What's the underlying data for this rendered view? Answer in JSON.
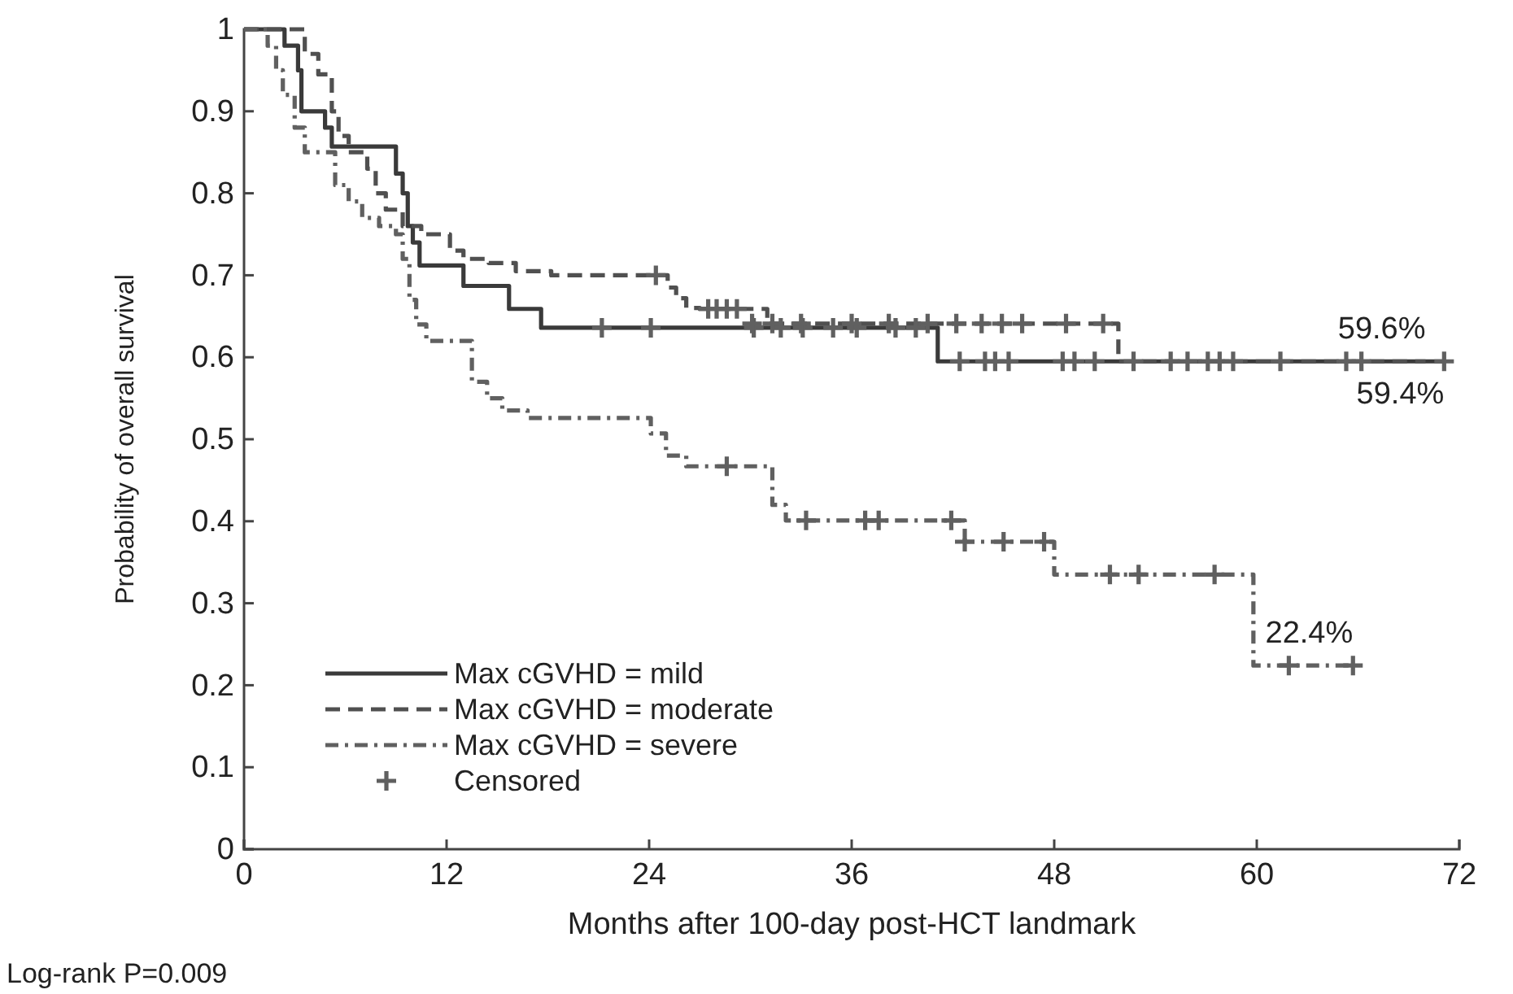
{
  "chart_data": {
    "type": "step",
    "xlabel": "Months after 100-day post-HCT landmark",
    "ylabel": "Probability of overall survival",
    "xlim": [
      0,
      72
    ],
    "xticks": [
      0,
      12,
      24,
      36,
      48,
      60,
      72
    ],
    "ylim": [
      0,
      1
    ],
    "yticks": [
      0,
      0.1,
      0.2,
      0.3,
      0.4,
      0.5,
      0.6,
      0.7,
      0.8,
      0.9,
      1
    ],
    "legend": "bottom left",
    "grid": false,
    "annotations": [
      {
        "text": "59.6%",
        "x": 70,
        "y": 0.595
      },
      {
        "text": "59.4%",
        "x": 71.1,
        "y": 0.595
      },
      {
        "text": "22.4%",
        "x": 65.7,
        "y": 0.224
      },
      "Log-rank P=0.009"
    ],
    "series": [
      {
        "name": "Max cGVHD = mild",
        "line_style": "solid",
        "color": "#3a3a3a",
        "x": [
          0,
          2.4,
          3.2,
          3.4,
          4.8,
          5.2,
          9.0,
          9.4,
          9.7,
          10.0,
          10.4,
          13.0,
          15.7,
          17.6,
          41.1,
          71.1
        ],
        "values": [
          1,
          0.98,
          0.95,
          0.9,
          0.88,
          0.857,
          0.824,
          0.8,
          0.76,
          0.74,
          0.712,
          0.687,
          0.659,
          0.636,
          0.595,
          0.595
        ]
      },
      {
        "name": "Max cGVHD = moderate",
        "line_style": "dashed",
        "color": "#505050",
        "x": [
          0,
          3.6,
          4.4,
          5.2,
          5.6,
          6.2,
          7.3,
          7.8,
          8.4,
          9.4,
          10.5,
          12.2,
          13.0,
          14.5,
          16.1,
          18.2,
          25.1,
          25.6,
          26.2,
          27.0,
          31.0,
          51.8,
          70
        ],
        "values": [
          1,
          0.97,
          0.945,
          0.9,
          0.87,
          0.85,
          0.83,
          0.8,
          0.78,
          0.76,
          0.75,
          0.73,
          0.72,
          0.715,
          0.705,
          0.7,
          0.685,
          0.672,
          0.66,
          0.659,
          0.641,
          0.595,
          0.595
        ]
      },
      {
        "name": "Max cGVHD = severe",
        "line_style": "dashdot",
        "color": "#606060",
        "x": [
          0,
          1.4,
          1.9,
          2.3,
          3.0,
          3.6,
          5.4,
          6.2,
          7.0,
          8.0,
          9.0,
          9.4,
          9.8,
          10.2,
          10.8,
          13.5,
          14.4,
          15.3,
          16.8,
          24.1,
          25.0,
          26.2,
          31.3,
          32.1,
          42.7,
          48.0,
          59.8,
          65.7
        ],
        "values": [
          1,
          0.98,
          0.95,
          0.92,
          0.88,
          0.85,
          0.81,
          0.79,
          0.77,
          0.76,
          0.75,
          0.72,
          0.67,
          0.64,
          0.62,
          0.57,
          0.55,
          0.535,
          0.526,
          0.507,
          0.48,
          0.467,
          0.42,
          0.401,
          0.375,
          0.335,
          0.224,
          0.224
        ]
      },
      {
        "name": "Censored",
        "type": "scatter",
        "marker": "cross",
        "color": "#606060",
        "x": [
          21.2,
          24.1,
          30.2,
          31.8,
          33.1,
          34.9,
          36.3,
          38.6,
          39.8,
          42.4,
          43.9,
          44.5,
          45.3,
          48.5,
          49.2,
          50.4,
          52.7,
          54.9,
          55.9,
          57.1,
          57.8,
          58.6,
          61.4,
          65.3,
          66.2,
          71.1,
          24.4,
          27.5,
          28.0,
          28.6,
          29.2,
          30.1,
          31.3,
          33.0,
          36.0,
          38.2,
          40.5,
          42.2,
          43.7,
          44.9,
          46.1,
          48.7,
          50.9,
          28.6,
          33.3,
          36.8,
          37.6,
          41.9,
          42.7,
          45.0,
          47.4,
          51.3,
          53.0,
          57.5,
          61.9,
          65.7
        ],
        "values": [
          0.636,
          0.636,
          0.636,
          0.636,
          0.636,
          0.636,
          0.636,
          0.636,
          0.636,
          0.595,
          0.595,
          0.595,
          0.595,
          0.595,
          0.595,
          0.595,
          0.595,
          0.595,
          0.595,
          0.595,
          0.595,
          0.595,
          0.595,
          0.595,
          0.595,
          0.595,
          0.7,
          0.659,
          0.659,
          0.659,
          0.659,
          0.641,
          0.641,
          0.641,
          0.641,
          0.641,
          0.641,
          0.641,
          0.641,
          0.641,
          0.641,
          0.641,
          0.641,
          0.467,
          0.401,
          0.401,
          0.401,
          0.401,
          0.375,
          0.375,
          0.375,
          0.335,
          0.335,
          0.335,
          0.224,
          0.224
        ]
      }
    ]
  }
}
